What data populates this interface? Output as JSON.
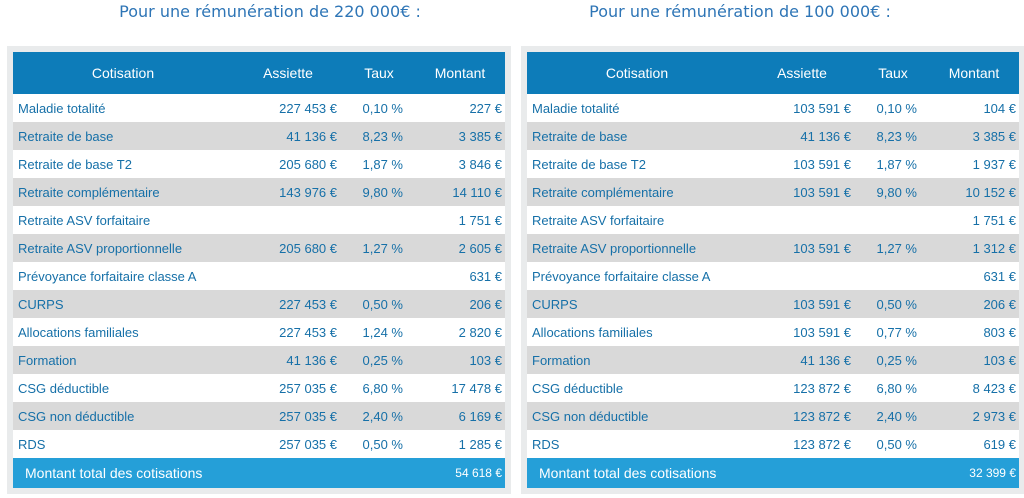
{
  "headings": [
    "Pour une rémunération de 220 000€ :",
    "Pour une rémunération de 100 000€ :"
  ],
  "tables": [
    {
      "header": [
        "Cotisation",
        "Assiette",
        "Taux",
        "Montant"
      ],
      "rows": [
        [
          "Maladie totalité",
          "227 453 €",
          "0,10 %",
          "227 €"
        ],
        [
          "Retraite de base",
          "41 136 €",
          "8,23 %",
          "3 385 €"
        ],
        [
          "Retraite de base T2",
          "205 680 €",
          "1,87 %",
          "3 846 €"
        ],
        [
          "Retraite complémentaire",
          "143 976 €",
          "9,80 %",
          "14 110 €"
        ],
        [
          "Retraite ASV forfaitaire",
          null,
          null,
          "1 751 €"
        ],
        [
          "Retraite ASV proportionnelle",
          "205 680 €",
          "1,27 %",
          "2 605 €"
        ],
        [
          "Prévoyance forfaitaire classe A",
          null,
          null,
          "631 €"
        ],
        [
          "CURPS",
          "227 453 €",
          "0,50 %",
          "206 €"
        ],
        [
          "Allocations familiales",
          "227 453 €",
          "1,24 %",
          "2 820 €"
        ],
        [
          "Formation",
          "41 136 €",
          "0,25 %",
          "103 €"
        ],
        [
          "CSG déductible",
          "257 035 €",
          "6,80 %",
          "17 478 €"
        ],
        [
          "CSG non déductible",
          "257 035 €",
          "2,40 %",
          "6 169 €"
        ],
        [
          "RDS",
          "257 035 €",
          "0,50 %",
          "1 285 €"
        ]
      ],
      "total": {
        "label": "Montant total des cotisations",
        "value": "54 618 €"
      }
    },
    {
      "header": [
        "Cotisation",
        "Assiette",
        "Taux",
        "Montant"
      ],
      "rows": [
        [
          "Maladie totalité",
          "103 591 €",
          "0,10 %",
          "104 €"
        ],
        [
          "Retraite de base",
          "41 136 €",
          "8,23 %",
          "3 385 €"
        ],
        [
          "Retraite de base T2",
          "103 591 €",
          "1,87 %",
          "1 937 €"
        ],
        [
          "Retraite complémentaire",
          "103 591 €",
          "9,80 %",
          "10 152 €"
        ],
        [
          "Retraite ASV forfaitaire",
          null,
          null,
          "1 751 €"
        ],
        [
          "Retraite ASV proportionnelle",
          "103 591 €",
          "1,27 %",
          "1 312 €"
        ],
        [
          "Prévoyance forfaitaire classe A",
          null,
          null,
          "631 €"
        ],
        [
          "CURPS",
          "103 591 €",
          "0,50 %",
          "206 €"
        ],
        [
          "Allocations familiales",
          "103 591 €",
          "0,77 %",
          "803 €"
        ],
        [
          "Formation",
          "41 136 €",
          "0,25 %",
          "103 €"
        ],
        [
          "CSG déductible",
          "123 872 €",
          "6,80 %",
          "8 423 €"
        ],
        [
          "CSG non déductible",
          "123 872 €",
          "2,40 %",
          "2 973 €"
        ],
        [
          "RDS",
          "123 872 €",
          "0,50 %",
          "619 €"
        ]
      ],
      "total": {
        "label": "Montant total des cotisations",
        "value": "32 399 €"
      }
    }
  ]
}
